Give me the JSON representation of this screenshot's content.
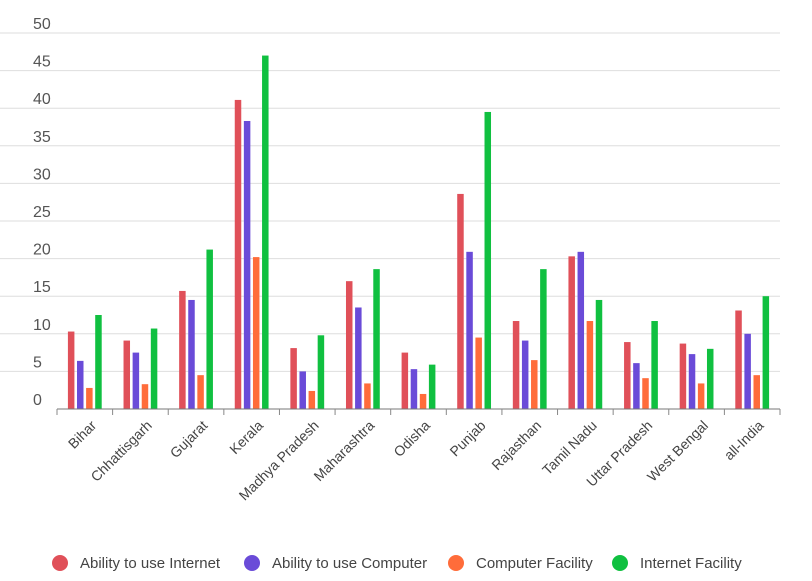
{
  "chart_data": {
    "type": "bar",
    "title": "",
    "xlabel": "",
    "ylabel": "",
    "ylim": [
      0,
      50
    ],
    "yticks": [
      0,
      5,
      10,
      15,
      20,
      25,
      30,
      35,
      40,
      45,
      50
    ],
    "grid": true,
    "legend_position": "bottom",
    "categories": [
      "Bihar",
      "Chhattisgarh",
      "Gujarat",
      "Kerala",
      "Madhya Pradesh",
      "Maharashtra",
      "Odisha",
      "Punjab",
      "Rajasthan",
      "Tamil Nadu",
      "Uttar Pradesh",
      "West Bengal",
      "all-India"
    ],
    "series": [
      {
        "name": "Ability to use Internet",
        "color": "#e05059",
        "values": [
          10.3,
          9.1,
          15.7,
          41.1,
          8.1,
          17.0,
          7.5,
          28.6,
          11.7,
          20.3,
          8.9,
          8.7,
          13.1
        ]
      },
      {
        "name": "Ability to use Computer",
        "color": "#6a4bd8",
        "values": [
          6.4,
          7.5,
          14.5,
          38.3,
          5.0,
          13.5,
          5.3,
          20.9,
          9.1,
          20.9,
          6.1,
          7.3,
          10.0
        ]
      },
      {
        "name": "Computer Facility",
        "color": "#ff6c3a",
        "values": [
          2.8,
          3.3,
          4.5,
          20.2,
          2.4,
          3.4,
          2.0,
          9.5,
          6.5,
          11.7,
          4.1,
          3.4,
          4.5
        ]
      },
      {
        "name": "Internet Facility",
        "color": "#10c040",
        "values": [
          12.5,
          10.7,
          21.2,
          47.0,
          9.8,
          18.6,
          5.9,
          39.5,
          18.6,
          14.5,
          11.7,
          8.0,
          15.0
        ]
      }
    ]
  }
}
